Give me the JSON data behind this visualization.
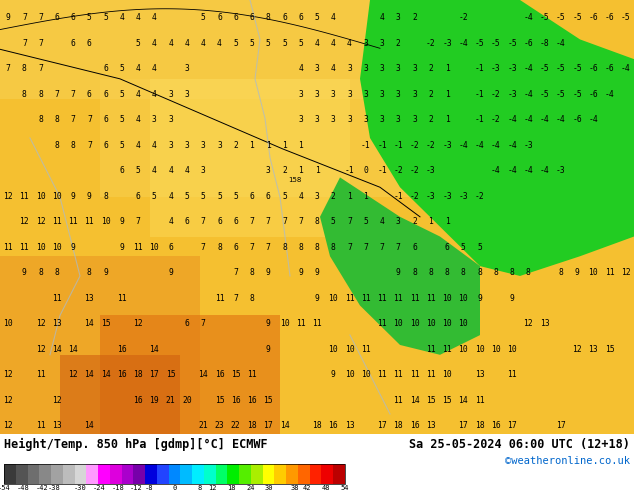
{
  "title_left": "Height/Temp. 850 hPa [gdmp][°C] ECMWF",
  "title_right": "Sa 25-05-2024 06:00 UTC (12+18)",
  "credit": "©weatheronline.co.uk",
  "colorbar_tick_labels": [
    "-54",
    "-48",
    "-42",
    "-38",
    "-30",
    "-24",
    "-18",
    "-12",
    "-8",
    "0",
    "8",
    "12",
    "18",
    "24",
    "30",
    "38",
    "42",
    "48",
    "54"
  ],
  "colorbar_tick_vals": [
    -54,
    -48,
    -42,
    -38,
    -30,
    -24,
    -18,
    -12,
    -8,
    0,
    8,
    12,
    18,
    24,
    30,
    38,
    42,
    48,
    54
  ],
  "credit_color": "#0066cc",
  "cbar_colors": [
    "#3a3a3a",
    "#555555",
    "#707070",
    "#909090",
    "#b0b0b0",
    "#d0d0d0",
    "#ff88ff",
    "#ee00ee",
    "#cc00cc",
    "#9900cc",
    "#6600bb",
    "#0000ee",
    "#3366ff",
    "#0099ff",
    "#00ccff",
    "#00eeff",
    "#00ff99",
    "#00ee55",
    "#00dd00",
    "#66ee00",
    "#aaee00",
    "#ffff00",
    "#ffdd00",
    "#ffaa00",
    "#ff7700",
    "#ff4400",
    "#ff0000",
    "#cc0000",
    "#990000"
  ],
  "map_rows": [
    [
      9,
      7,
      7,
      6,
      6,
      5,
      5,
      4,
      4,
      4,
      null,
      null,
      5,
      6,
      6,
      6,
      8,
      6,
      6,
      5,
      4,
      null,
      null,
      4,
      3,
      2,
      null,
      null,
      -2,
      null,
      null,
      null,
      -4,
      -5,
      -5,
      -5,
      -6,
      -6,
      -5
    ],
    [
      null,
      7,
      7,
      null,
      6,
      6,
      null,
      null,
      5,
      4,
      4,
      4,
      4,
      4,
      5,
      5,
      5,
      5,
      5,
      4,
      4,
      4,
      3,
      3,
      2,
      null,
      -2,
      -3,
      -4,
      -5,
      -5,
      -5,
      -6,
      -8,
      -4,
      null,
      null,
      null,
      null
    ],
    [
      7,
      8,
      7,
      null,
      null,
      null,
      6,
      5,
      4,
      4,
      null,
      3,
      null,
      null,
      null,
      null,
      null,
      null,
      4,
      3,
      4,
      3,
      3,
      3,
      3,
      3,
      2,
      1,
      null,
      -1,
      -3,
      -3,
      -4,
      -5,
      -5,
      -5,
      -6,
      -6,
      -4,
      null,
      null,
      null,
      null
    ],
    [
      null,
      8,
      8,
      7,
      7,
      6,
      6,
      5,
      4,
      4,
      3,
      3,
      null,
      null,
      null,
      null,
      null,
      null,
      3,
      3,
      3,
      3,
      3,
      3,
      3,
      3,
      2,
      1,
      null,
      -1,
      -2,
      -3,
      -4,
      -5,
      -5,
      -5,
      -6,
      -4,
      null,
      null,
      null,
      null
    ],
    [
      null,
      null,
      8,
      8,
      7,
      7,
      6,
      5,
      4,
      3,
      3,
      null,
      null,
      null,
      null,
      null,
      null,
      null,
      3,
      3,
      3,
      3,
      3,
      3,
      3,
      3,
      2,
      1,
      null,
      -1,
      -2,
      -4,
      -4,
      -4,
      -4,
      -6,
      -4,
      null,
      null,
      null,
      null
    ],
    [
      null,
      null,
      null,
      8,
      8,
      7,
      6,
      5,
      4,
      4,
      3,
      3,
      3,
      3,
      2,
      1,
      1,
      1,
      1,
      null,
      null,
      null,
      -1,
      -1,
      -1,
      -2,
      -2,
      -3,
      -4,
      -4,
      -4,
      -4,
      -3,
      null,
      null,
      null,
      null,
      null,
      null,
      null,
      null,
      null
    ],
    [
      null,
      null,
      null,
      null,
      null,
      null,
      null,
      6,
      5,
      4,
      4,
      4,
      3,
      null,
      null,
      null,
      3,
      2,
      1,
      1,
      null,
      -1,
      0,
      -1,
      -2,
      -2,
      -3,
      null,
      null,
      null,
      -4,
      -4,
      -4,
      -4,
      -3,
      null,
      null,
      null,
      null,
      null,
      null,
      null
    ],
    [
      12,
      11,
      10,
      10,
      9,
      9,
      8,
      null,
      6,
      5,
      4,
      5,
      5,
      5,
      5,
      6,
      6,
      5,
      4,
      3,
      2,
      1,
      1,
      null,
      -1,
      -2,
      -3,
      -3,
      -3,
      -2,
      null,
      null,
      null,
      null,
      null,
      null,
      null,
      null,
      null,
      null,
      null,
      null
    ],
    [
      null,
      12,
      12,
      11,
      11,
      11,
      10,
      9,
      7,
      null,
      4,
      6,
      7,
      6,
      6,
      7,
      7,
      7,
      7,
      8,
      5,
      7,
      5,
      4,
      3,
      2,
      1,
      1,
      null,
      null,
      null,
      null,
      null,
      null,
      null,
      null,
      null,
      null,
      null,
      null
    ],
    [
      11,
      11,
      10,
      10,
      9,
      null,
      null,
      9,
      11,
      10,
      6,
      null,
      7,
      8,
      6,
      7,
      7,
      8,
      8,
      8,
      8,
      7,
      7,
      7,
      7,
      6,
      null,
      6,
      5,
      5,
      null,
      null,
      null,
      null,
      null,
      null,
      null,
      null,
      null,
      null
    ],
    [
      null,
      9,
      8,
      8,
      null,
      8,
      9,
      null,
      null,
      null,
      9,
      null,
      null,
      null,
      7,
      8,
      9,
      null,
      9,
      9,
      null,
      null,
      null,
      null,
      9,
      8,
      8,
      8,
      8,
      8,
      8,
      8,
      8,
      null,
      8,
      9,
      10,
      11,
      12,
      null
    ],
    [
      null,
      null,
      null,
      11,
      null,
      13,
      null,
      11,
      null,
      null,
      null,
      null,
      null,
      11,
      7,
      8,
      null,
      null,
      null,
      9,
      10,
      11,
      11,
      11,
      11,
      11,
      11,
      10,
      10,
      9,
      null,
      9,
      null,
      null,
      null,
      null,
      null,
      null,
      null,
      null
    ],
    [
      10,
      null,
      12,
      13,
      null,
      14,
      15,
      null,
      12,
      null,
      null,
      6,
      7,
      null,
      null,
      null,
      9,
      10,
      11,
      11,
      null,
      null,
      null,
      11,
      10,
      10,
      10,
      10,
      10,
      null,
      null,
      null,
      12,
      13,
      null,
      null,
      null,
      null,
      null,
      null
    ],
    [
      null,
      null,
      12,
      14,
      14,
      null,
      null,
      16,
      null,
      14,
      null,
      null,
      null,
      null,
      null,
      null,
      9,
      null,
      null,
      null,
      10,
      10,
      11,
      null,
      null,
      null,
      11,
      11,
      10,
      10,
      10,
      10,
      null,
      null,
      null,
      12,
      13,
      15,
      null,
      null
    ],
    [
      12,
      null,
      11,
      null,
      12,
      14,
      14,
      16,
      18,
      17,
      15,
      null,
      14,
      16,
      15,
      11,
      null,
      null,
      null,
      null,
      9,
      10,
      10,
      11,
      11,
      11,
      11,
      10,
      null,
      13,
      null,
      11,
      null,
      null,
      null,
      null,
      null,
      null,
      null,
      null
    ],
    [
      12,
      null,
      null,
      12,
      null,
      null,
      null,
      null,
      16,
      19,
      21,
      20,
      null,
      15,
      16,
      16,
      15,
      null,
      null,
      null,
      null,
      null,
      null,
      null,
      11,
      14,
      15,
      15,
      14,
      11,
      null,
      null,
      null,
      null,
      null,
      null,
      null,
      null,
      null,
      null
    ],
    [
      12,
      null,
      11,
      13,
      null,
      14,
      null,
      null,
      null,
      null,
      null,
      null,
      21,
      23,
      22,
      18,
      17,
      14,
      null,
      18,
      16,
      13,
      null,
      17,
      18,
      16,
      13,
      null,
      17,
      18,
      16,
      17,
      null,
      null,
      17,
      null,
      null,
      null,
      null,
      null
    ]
  ],
  "numbers_color": "#000000",
  "bg_yellow": "#f5c030",
  "bg_orange_light": "#f0a030",
  "bg_orange": "#e08020",
  "bg_orange_dark": "#d06010",
  "bg_green_bright": "#22cc22",
  "bg_green_dark": "#119911"
}
